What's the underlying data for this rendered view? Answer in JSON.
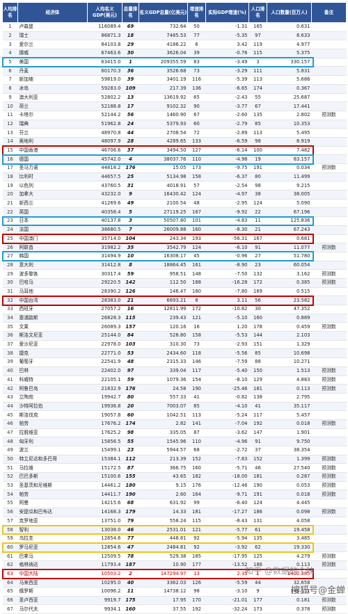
{
  "headers": [
    "人均排名",
    "经济体",
    "人均名义GDP(美元)",
    "总量排名",
    "名义GDP总量(亿美元)",
    "增速排名",
    "实际GDP增速(%)",
    "人口排名",
    "人口数量(百万人)",
    "备注"
  ],
  "rows": [
    [
      "1",
      "卢森堡",
      "116089.4",
      "69",
      "732.64",
      "50",
      "-1.31",
      "165",
      "0.631",
      ""
    ],
    [
      "2",
      "瑞士",
      "86871.3",
      "18",
      "7485.53",
      "77",
      "-5.35",
      "97",
      "8.633",
      ""
    ],
    [
      "3",
      "爱尔兰",
      "84103.8",
      "29",
      "4186.22",
      "6",
      "3.42",
      "119",
      "4.977",
      ""
    ],
    [
      "4",
      "挪威",
      "67463.6",
      "30",
      "3626.04",
      "39",
      "-0.76",
      "115",
      "5.375",
      ""
    ],
    [
      "5",
      "美国",
      "63415.0",
      "1",
      "209355.59",
      "83",
      "-3.49",
      "3",
      "330.157",
      ""
    ],
    [
      "6",
      "丹麦",
      "60170.3",
      "36",
      "3526.68",
      "73",
      "-3.29",
      "111",
      "5.831",
      ""
    ],
    [
      "7",
      "新加坡",
      "59819.0",
      "39",
      "3401.19",
      "116",
      "-5.39",
      "113",
      "5.686",
      ""
    ],
    [
      "8",
      "冰岛",
      "59283.0",
      "109",
      "217.39",
      "136",
      "-6.65",
      "174",
      "0.367",
      ""
    ],
    [
      "9",
      "澳大利亚",
      "52802.2",
      "13",
      "13619.92",
      "65",
      "-2.43",
      "55",
      "25.687",
      ""
    ],
    [
      "10",
      "荷兰",
      "52188.8",
      "17",
      "9102.32",
      "90",
      "-3.77",
      "67",
      "17.441",
      ""
    ],
    [
      "11",
      "卡塔尔",
      "52144.2",
      "56",
      "1460.90",
      "67",
      "-2.60",
      "135",
      "2.802",
      "预测数"
    ],
    [
      "12",
      "瑞典",
      "51962.8",
      "24",
      "5379.93",
      "60",
      "-2.79",
      "85",
      "10.353",
      ""
    ],
    [
      "13",
      "芬兰",
      "48970.8",
      "44",
      "2708.54",
      "72",
      "-2.89",
      "113",
      "5.495",
      ""
    ],
    [
      "14",
      "奥地利",
      "48097.9",
      "28",
      "4289.65",
      "133",
      "-6.59",
      "98",
      "8.919",
      ""
    ],
    [
      "15",
      "中国香港",
      "46706.6",
      "37",
      "3494.50",
      "127",
      "-6.14",
      "100",
      "7.482",
      ""
    ],
    [
      "16",
      "德国",
      "45742.0",
      "4",
      "38037.76",
      "110",
      "-4.98",
      "19",
      "83.157",
      ""
    ],
    [
      "17",
      "圣马力诺",
      "44818.2",
      "176",
      "15.05",
      "173",
      "-9.75",
      "191",
      "0.034",
      "预测数"
    ],
    [
      "18",
      "比利时",
      "44657.5",
      "25",
      "5134.98",
      "158",
      "-6.37",
      "80",
      "11.499",
      ""
    ],
    [
      "19",
      "以色列",
      "43760.5",
      "31",
      "4018.91",
      "57",
      "-2.54",
      "98",
      "9.215",
      ""
    ],
    [
      "20",
      "加拿大",
      "43232.0",
      "9",
      "16430.42",
      "124",
      "-4.97",
      "38",
      "38.005",
      ""
    ],
    [
      "21",
      "新西兰",
      "41269.6",
      "49",
      "2100.54",
      "48",
      "-2.95",
      "124",
      "5.090",
      ""
    ],
    [
      "22",
      "英国",
      "40358.4",
      "5",
      "27119.25",
      "167",
      "-9.92",
      "22",
      "67.196",
      ""
    ],
    [
      "23",
      "日本",
      "40137.8",
      "3",
      "50507.80",
      "101",
      "-4.83",
      "11",
      "125.836",
      ""
    ],
    [
      "24",
      "法国",
      "38680.5",
      "7",
      "26009.88",
      "160",
      "-8.30",
      "21",
      "67.243",
      ""
    ],
    [
      "25",
      "中国澳门",
      "35714.0",
      "104",
      "243.34",
      "193",
      "-56.31",
      "167",
      "0.681",
      ""
    ],
    [
      "26",
      "阿联酋",
      "31982.2",
      "35",
      "3542.79",
      "124",
      "-6.10",
      "91",
      "11.077",
      "预测数"
    ],
    [
      "27",
      "韩国",
      "31494.9",
      "10",
      "16308.17",
      "45",
      "-0.96",
      "27",
      "51.780",
      ""
    ],
    [
      "28",
      "意大利",
      "31412.8",
      "8",
      "18864.45",
      "161",
      "-8.90",
      "23",
      "60.054",
      ""
    ],
    [
      "29",
      "波多黎各",
      "30317.4",
      "59",
      "958.51",
      "148",
      "-7.50",
      "132",
      "3.162",
      "预测数"
    ],
    [
      "30",
      "巴哈马",
      "29220.5",
      "142",
      "112.50",
      "188",
      "-16.28",
      "172",
      "0.385",
      "预测数"
    ],
    [
      "31",
      "马耳他",
      "28390.2",
      "126",
      "146.47",
      "180",
      "-7.80",
      "169",
      "0.515",
      ""
    ],
    [
      "32",
      "中国台湾",
      "28383.0",
      "21",
      "6693.21",
      "8",
      "3.11",
      "56",
      "23.582",
      ""
    ],
    [
      "33",
      "西班牙",
      "27057.2",
      "16",
      "12811.99",
      "172",
      "-10.82",
      "30",
      "47.352",
      ""
    ],
    [
      "34",
      "塞浦路斯",
      "26828.3",
      "115",
      "239.43",
      "121",
      "-5.10",
      "160",
      "0.889",
      ""
    ],
    [
      "35",
      "文莱",
      "26089.3",
      "157",
      "120.16",
      "16",
      "1.20",
      "178",
      "0.459",
      "预测数"
    ],
    [
      "36",
      "斯洛文尼亚",
      "25144.0",
      "84",
      "528.80",
      "158",
      "-5.53",
      "144",
      "2.103",
      ""
    ],
    [
      "37",
      "爱沙尼亚",
      "22978.0",
      "103",
      "310.30",
      "73",
      "-2.93",
      "151",
      "1.329",
      ""
    ],
    [
      "38",
      "捷克",
      "22771.0",
      "53",
      "2434.60",
      "118",
      "-5.56",
      "85",
      "10.698",
      ""
    ],
    [
      "39",
      "葡萄牙",
      "22541.9",
      "48",
      "2315.33",
      "146",
      "-7.59",
      "88",
      "10.271",
      ""
    ],
    [
      "40",
      "巴林",
      "22402.0",
      "97",
      "339.04",
      "117",
      "-5.40",
      "150",
      "1.513",
      "预测数"
    ],
    [
      "41",
      "科威特",
      "22105.1",
      "59",
      "1079.36",
      "154",
      "-8.10",
      "129",
      "4.883",
      "预测数"
    ],
    [
      "42",
      "阿鲁巴岛",
      "21832.9",
      "176",
      "24.58",
      "190",
      "-25.46",
      "181",
      "0.113",
      "预测数"
    ],
    [
      "43",
      "立陶宛",
      "19942.7",
      "80",
      "557.33",
      "41",
      "-0.82",
      "138",
      "2.795",
      ""
    ],
    [
      "44",
      "沙特阿拉伯",
      "19936.8",
      "20",
      "7003.07",
      "85",
      "-4.10",
      "41",
      "35.117",
      ""
    ],
    [
      "45",
      "斯洛伐克",
      "19057.8",
      "60",
      "1042.51",
      "113",
      "-5.24",
      "117",
      "5.457",
      ""
    ],
    [
      "46",
      "帕劳",
      "17676.2",
      "174",
      "2.82",
      "141",
      "-7.04",
      "192",
      "0.018",
      "预测数"
    ],
    [
      "47",
      "拉脱维亚",
      "17625.2",
      "98",
      "335.05",
      "87",
      "-3.62",
      "147",
      "1.901",
      ""
    ],
    [
      "48",
      "匈牙利",
      "15856.5",
      "55",
      "1545.96",
      "110",
      "-4.96",
      "91",
      "9.750",
      ""
    ],
    [
      "49",
      "波兰",
      "15499.1",
      "23",
      "5944.57",
      "68",
      "-2.72",
      "37",
      "38.354",
      ""
    ],
    [
      "50",
      "特立尼达和多巴哥",
      "15384.1",
      "112",
      "213.39",
      "152",
      "-7.83",
      "152",
      "1.399",
      "预测数"
    ],
    [
      "51",
      "马拉维",
      "15172.5",
      "87",
      "366.75",
      "160",
      "-5.71",
      "46",
      "27.540",
      "预测数"
    ],
    [
      "52",
      "巴巴多斯",
      "15100.6",
      "155",
      "43.65",
      "182",
      "-18.00",
      "181",
      "0.287",
      "预测数"
    ],
    [
      "53",
      "圣基茨和尼维斯",
      "14461.2",
      "180",
      "9.15",
      "176",
      "-12.46",
      "190",
      "0.053",
      "预测数"
    ],
    [
      "54",
      "帕劳",
      "14411.7",
      "190",
      "2.60",
      "164",
      "-9.71",
      "191",
      "0.018",
      "预测数"
    ],
    [
      "55",
      "阿曼",
      "14215.6",
      "68",
      "631.92",
      "99",
      "-6.40",
      "124",
      "4.445",
      ""
    ],
    [
      "56",
      "安提瓜和巴布达",
      "14168.3",
      "179",
      "14.33",
      "181",
      "-17.27",
      "186",
      "0.098",
      "预测数"
    ],
    [
      "57",
      "克罗地亚",
      "13751.0",
      "79",
      "558.24",
      "115",
      "-8.43",
      "131",
      "4.058",
      ""
    ],
    [
      "58",
      "智利",
      "13038.0",
      "46",
      "2531.01",
      "121",
      "-5.77",
      "61",
      "19.458",
      ""
    ],
    [
      "59",
      "乌拉圭",
      "12854.6",
      "77",
      "448.81",
      "92",
      "-5.94",
      "135",
      "3.485",
      ""
    ],
    [
      "60",
      "罗马尼亚",
      "12854.6",
      "47",
      "2484.81",
      "92",
      "-3.92",
      "62",
      "19.330",
      ""
    ],
    [
      "61",
      "巴拿马",
      "12509.5",
      "78",
      "529.38",
      "185",
      "-17.95",
      "125",
      "4.279",
      "预测数"
    ],
    [
      "62",
      "格林纳达",
      "11793.4",
      "187",
      "10.90",
      "177",
      "-13.52",
      "186",
      "0.113",
      "预测数"
    ],
    [
      "63",
      "中国大陆",
      "10503.2",
      "2",
      "147294.97",
      "13",
      "2.35",
      "1",
      "1402.385",
      ""
    ],
    [
      "64",
      "马来西亚",
      "10295.0",
      "40",
      "3362.03",
      "126",
      "-5.59",
      "44",
      "32.658",
      ""
    ],
    [
      "65",
      "俄罗斯",
      "10096.2",
      "11",
      "14738.12",
      "98",
      "-3.10",
      "9",
      "146.171",
      ""
    ],
    [
      "66",
      "圣卢西亚",
      "9919.7",
      "175",
      "17.95",
      "170",
      "-21.01",
      "177",
      "0.181",
      "预测数"
    ],
    [
      "67",
      "马尔代夫",
      "9934.1",
      "160",
      "37.55",
      "192",
      "-32.24",
      "173",
      "0.378",
      "预测数"
    ]
  ],
  "highlights": [
    {
      "row": 5,
      "color": "#1f9bd1"
    },
    {
      "row": 15,
      "color": "#c00000"
    },
    {
      "row": 16,
      "color": "#1f9bd1"
    },
    {
      "row": 23,
      "color": "#1f9bd1"
    },
    {
      "row": 25,
      "color": "#c00000"
    },
    {
      "row": 27,
      "color": "#1f9bd1"
    },
    {
      "row": 32,
      "color": "#c00000"
    },
    {
      "row": 58,
      "color": "#f0c419"
    },
    {
      "row": 60,
      "color": "#f0c419"
    },
    {
      "row": 63,
      "color": "#c00000"
    }
  ],
  "watermarks": [
    "知乎 @数据的个味",
    "搜狐号@金蝉"
  ]
}
